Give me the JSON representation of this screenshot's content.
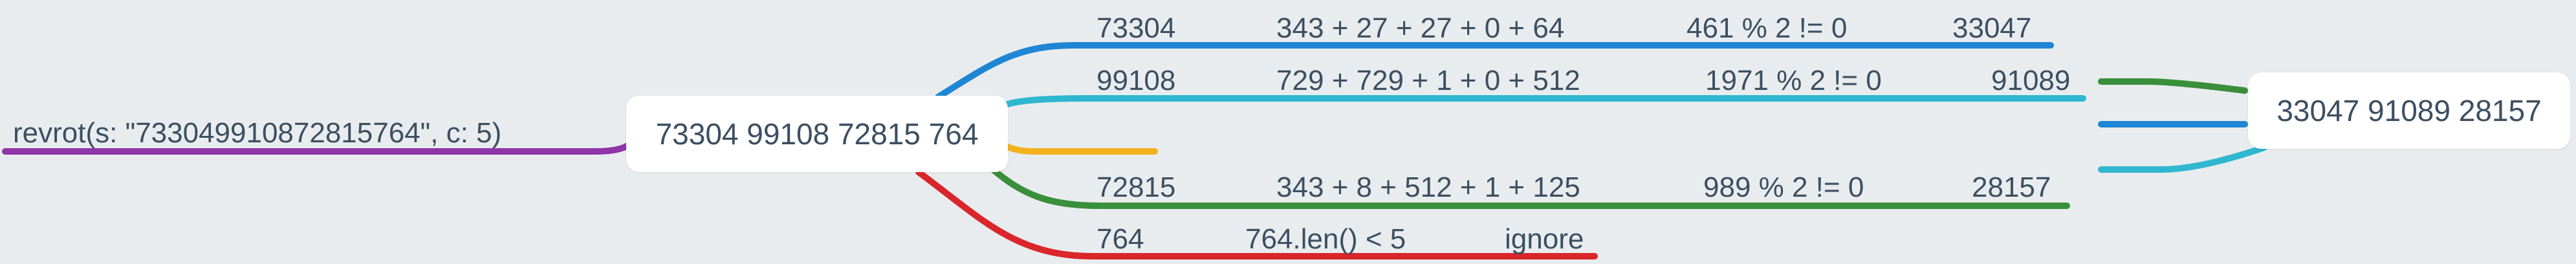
{
  "root": {
    "label": "revrot(s: \"733049910872815764\", c: 5)"
  },
  "split_node": {
    "label": "73304 99108 72815 764"
  },
  "result_node": {
    "label": "33047 91089 28157"
  },
  "branches": [
    {
      "id": "b1",
      "chunk": "73304",
      "cube_sum": "343 + 27 + 27 + 0 + 64",
      "test": "461 % 2 != 0",
      "result": "33047",
      "color": "#1f86d3"
    },
    {
      "id": "b2",
      "chunk": "99108",
      "cube_sum": "729 + 729 + 1 + 0 + 512",
      "test": "1971 % 2 != 0",
      "result": "91089",
      "color": "#2fb7cf"
    },
    {
      "id": "b3",
      "chunk": "72815",
      "cube_sum": "343 + 8 + 512 + 1 + 125",
      "test": "989 % 2 != 0",
      "result": "28157",
      "color": "#3a8f3a"
    },
    {
      "id": "b4",
      "chunk": "764",
      "cube_sum": "764.len() < 5",
      "test": "ignore",
      "result": "",
      "color": "#d9262b"
    }
  ],
  "colors": {
    "root_edge": "#8e35a8",
    "dangling_edge": "#f3b21b",
    "text": "#3c4f61",
    "background": "#e9ecef",
    "node_fill": "#ffffff"
  }
}
